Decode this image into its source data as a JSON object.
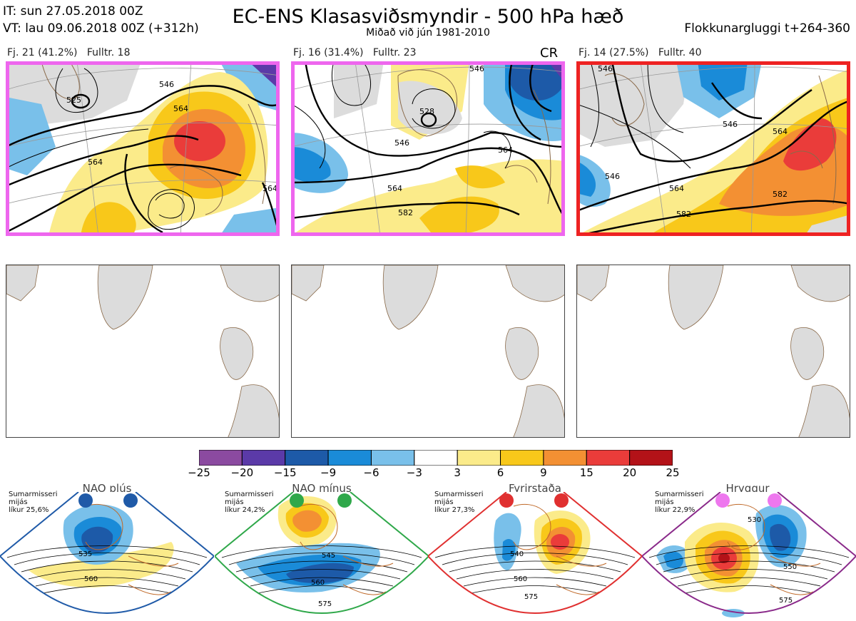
{
  "header": {
    "it": "IT: sun 27.05.2018 00Z",
    "vt": "VT: lau 09.06.2018 00Z  (+312h)",
    "title": "EC-ENS Klasasviðsmyndir - 500 hPa hæð",
    "subtitle": "Miðað við jún 1981-2010",
    "window": "Flokkunargluggi t+264-360"
  },
  "clusters": [
    {
      "label": "Fj. 21 (41.2%)",
      "rep": "Fulltr. 18",
      "border": "#ee66ee",
      "tag": "",
      "contours": [
        "525",
        "546",
        "564",
        "564",
        "564"
      ]
    },
    {
      "label": "Fj. 16 (31.4%)",
      "rep": "Fulltr. 23",
      "border": "#ee66ee",
      "tag": "CR",
      "contours": [
        "528",
        "546",
        "546",
        "564",
        "564",
        "582"
      ]
    },
    {
      "label": "Fj. 14 (27.5%)",
      "rep": "Fulltr. 40",
      "border": "#ee2222",
      "tag": "",
      "contours": [
        "546",
        "546",
        "546",
        "564",
        "564",
        "582",
        "582"
      ]
    }
  ],
  "colorbar": {
    "ticks": [
      "−25",
      "−20",
      "−15",
      "−9",
      "−6",
      "−3",
      "3",
      "6",
      "9",
      "15",
      "20",
      "25"
    ],
    "colors": [
      "#8b4aa0",
      "#5b3aa8",
      "#1d5aa8",
      "#1a8bd8",
      "#79c0ea",
      "#ffffff",
      "#fbeb8a",
      "#f8c81a",
      "#f39033",
      "#ea3c3a",
      "#b31218"
    ]
  },
  "regimes": [
    {
      "title": "NAO plús",
      "note": [
        "Sumarmisseri",
        "mijás",
        "líkur 25,6%"
      ],
      "color": "#1f5aa8",
      "dot": "#1f5aa8",
      "labels": [
        "535",
        "560"
      ]
    },
    {
      "title": "NAO mínus",
      "note": [
        "Sumarmisseri",
        "mijás",
        "líkur 24,2%"
      ],
      "color": "#2fa84a",
      "dot": "#2fa84a",
      "labels": [
        "545",
        "560",
        "575"
      ]
    },
    {
      "title": "Fyrirstaða",
      "note": [
        "Sumarmisseri",
        "mijás",
        "líkur 27,3%"
      ],
      "color": "#e03030",
      "dot": "#e03030",
      "labels": [
        "540",
        "560",
        "575"
      ]
    },
    {
      "title": "Hryggur",
      "note": [
        "Sumarmisseri",
        "mijás",
        "líkur 22,9%"
      ],
      "color": "#8a2a8a",
      "dot": "#ee77ee",
      "labels": [
        "530",
        "550",
        "575"
      ]
    }
  ]
}
